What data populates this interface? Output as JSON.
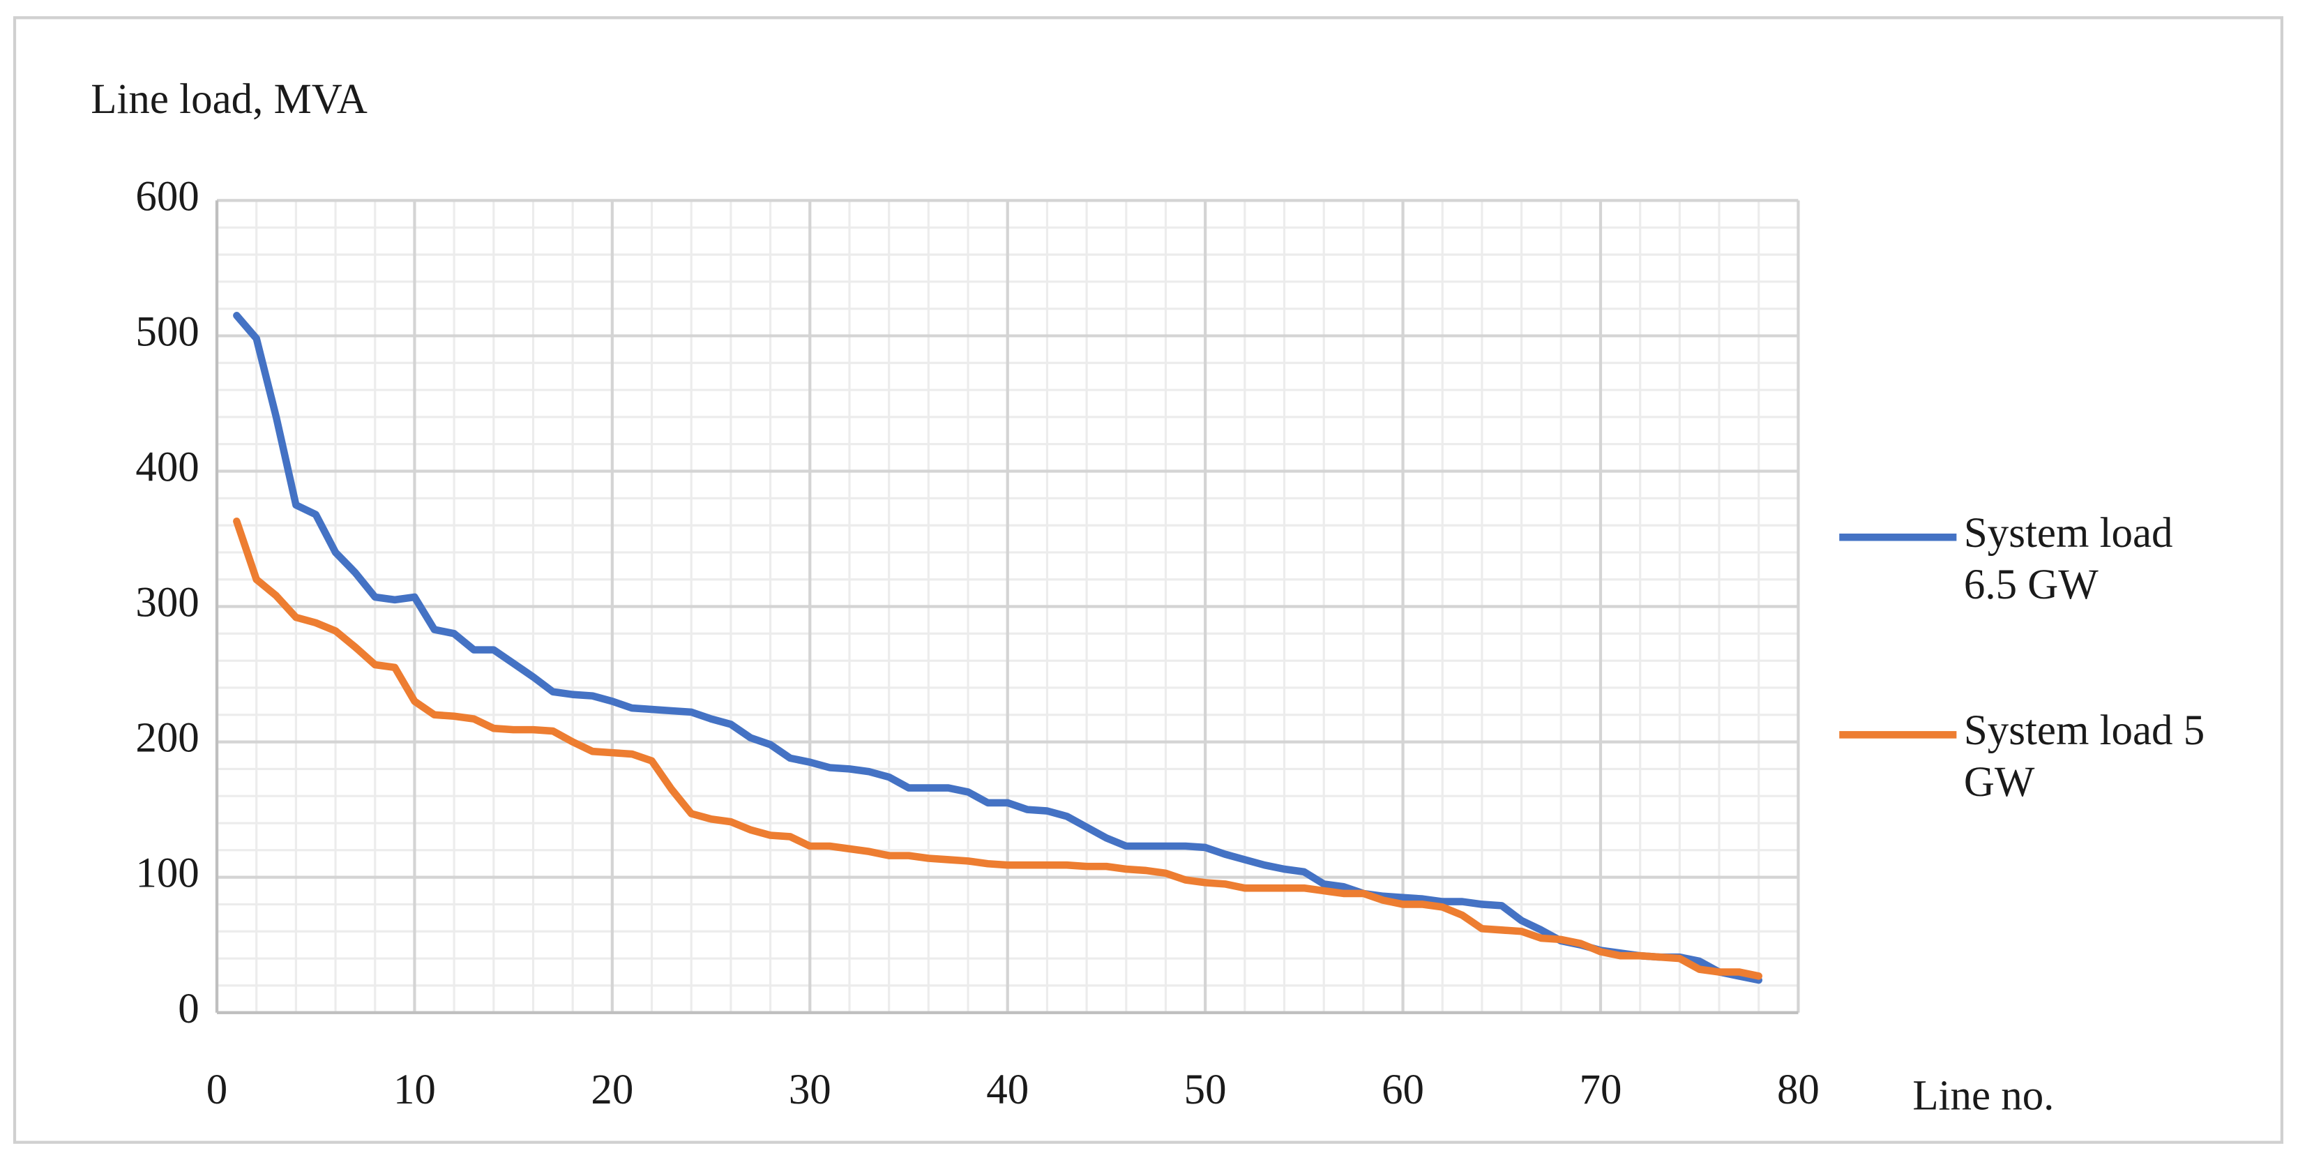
{
  "chart_data": {
    "type": "line",
    "y_label": "Line load, MVA",
    "x_label": "Line no.",
    "x": [
      1,
      2,
      3,
      4,
      5,
      6,
      7,
      8,
      9,
      10,
      11,
      12,
      13,
      14,
      15,
      16,
      17,
      18,
      19,
      20,
      21,
      22,
      23,
      24,
      25,
      26,
      27,
      28,
      29,
      30,
      31,
      32,
      33,
      34,
      35,
      36,
      37,
      38,
      39,
      40,
      41,
      42,
      43,
      44,
      45,
      46,
      47,
      48,
      49,
      50,
      51,
      52,
      53,
      54,
      55,
      56,
      57,
      58,
      59,
      60,
      61,
      62,
      63,
      64,
      65,
      66,
      67,
      68,
      69,
      70,
      71,
      72,
      73,
      74,
      75,
      76,
      77,
      78
    ],
    "series": [
      {
        "name": "System load 6.5 GW",
        "color": "#4472c4",
        "values": [
          515,
          498,
          440,
          375,
          368,
          340,
          325,
          307,
          305,
          307,
          283,
          280,
          268,
          268,
          258,
          248,
          237,
          235,
          234,
          230,
          225,
          224,
          223,
          222,
          217,
          213,
          203,
          198,
          188,
          185,
          181,
          180,
          178,
          174,
          166,
          166,
          166,
          163,
          155,
          155,
          150,
          149,
          145,
          137,
          129,
          123,
          123,
          123,
          123,
          122,
          117,
          113,
          109,
          106,
          104,
          95,
          93,
          88,
          86,
          85,
          84,
          82,
          82,
          80,
          79,
          68,
          61,
          53,
          50,
          46,
          44,
          42,
          41,
          41,
          38,
          30,
          27,
          24
        ]
      },
      {
        "name": "System load 5 GW",
        "color": "#ed7d31",
        "values": [
          363,
          320,
          308,
          292,
          288,
          282,
          270,
          257,
          255,
          230,
          220,
          219,
          217,
          210,
          209,
          209,
          208,
          200,
          193,
          192,
          191,
          186,
          165,
          147,
          143,
          141,
          135,
          131,
          130,
          123,
          123,
          121,
          119,
          116,
          116,
          114,
          113,
          112,
          110,
          109,
          109,
          109,
          109,
          108,
          108,
          106,
          105,
          103,
          98,
          96,
          95,
          92,
          92,
          92,
          92,
          90,
          88,
          88,
          83,
          80,
          80,
          78,
          72,
          62,
          61,
          60,
          55,
          54,
          51,
          45,
          42,
          42,
          41,
          40,
          32,
          30,
          30,
          27
        ]
      }
    ],
    "xlim": [
      0,
      80
    ],
    "xticks": [
      0,
      10,
      20,
      30,
      40,
      50,
      60,
      70,
      80
    ],
    "ylim": [
      0,
      600
    ],
    "yticks": [
      0,
      100,
      200,
      300,
      400,
      500,
      600
    ],
    "grid": true,
    "legend": "right"
  }
}
